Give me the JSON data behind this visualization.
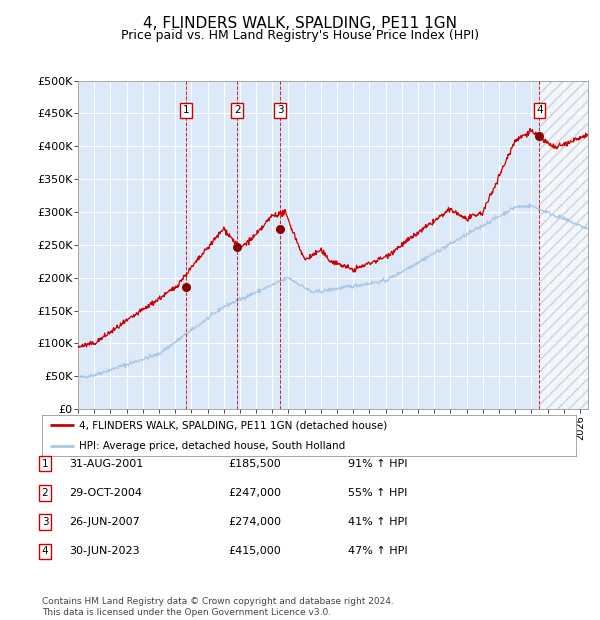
{
  "title": "4, FLINDERS WALK, SPALDING, PE11 1GN",
  "subtitle": "Price paid vs. HM Land Registry's House Price Index (HPI)",
  "xlim": [
    1995.0,
    2026.5
  ],
  "ylim": [
    0,
    500000
  ],
  "yticks": [
    0,
    50000,
    100000,
    150000,
    200000,
    250000,
    300000,
    350000,
    400000,
    450000,
    500000
  ],
  "ytick_labels": [
    "£0",
    "£50K",
    "£100K",
    "£150K",
    "£200K",
    "£250K",
    "£300K",
    "£350K",
    "£400K",
    "£450K",
    "£500K"
  ],
  "plot_bg_color": "#dce9f8",
  "hpi_line_color": "#a8c8e8",
  "price_line_color": "#cc0000",
  "sale_marker_color": "#880000",
  "vline_color": "#cc0000",
  "legend_line1": "4, FLINDERS WALK, SPALDING, PE11 1GN (detached house)",
  "legend_line2": "HPI: Average price, detached house, South Holland",
  "sales": [
    {
      "num": 1,
      "date_label": "31-AUG-2001",
      "price": 185500,
      "hpi_pct": "91%",
      "year": 2001.67
    },
    {
      "num": 2,
      "date_label": "29-OCT-2004",
      "price": 247000,
      "hpi_pct": "55%",
      "year": 2004.83
    },
    {
      "num": 3,
      "date_label": "26-JUN-2007",
      "price": 274000,
      "hpi_pct": "41%",
      "year": 2007.5
    },
    {
      "num": 4,
      "date_label": "30-JUN-2023",
      "price": 415000,
      "hpi_pct": "47%",
      "year": 2023.5
    }
  ],
  "footer": "Contains HM Land Registry data © Crown copyright and database right 2024.\nThis data is licensed under the Open Government Licence v3.0.",
  "title_fontsize": 11,
  "subtitle_fontsize": 9,
  "tick_fontsize": 7
}
